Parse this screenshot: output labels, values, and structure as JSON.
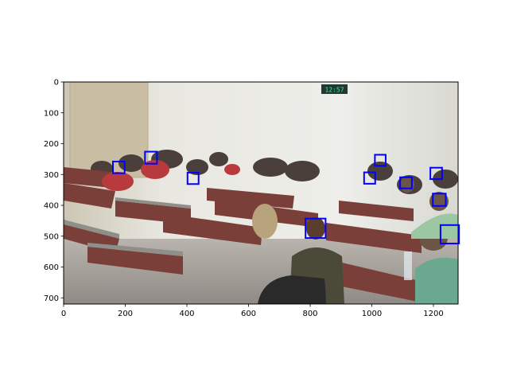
{
  "figure": {
    "image_extent": {
      "x": [
        0,
        1280
      ],
      "y": [
        720,
        0
      ]
    },
    "x_ticks": [
      {
        "value": 0,
        "label": "0"
      },
      {
        "value": 200,
        "label": "200"
      },
      {
        "value": 400,
        "label": "400"
      },
      {
        "value": 600,
        "label": "600"
      },
      {
        "value": 800,
        "label": "800"
      },
      {
        "value": 1000,
        "label": "1000"
      },
      {
        "value": 1200,
        "label": "1200"
      }
    ],
    "y_ticks": [
      {
        "value": 0,
        "label": "0"
      },
      {
        "value": 100,
        "label": "100"
      },
      {
        "value": 200,
        "label": "200"
      },
      {
        "value": 300,
        "label": "300"
      },
      {
        "value": 400,
        "label": "400"
      },
      {
        "value": 500,
        "label": "500"
      },
      {
        "value": 600,
        "label": "600"
      },
      {
        "value": 700,
        "label": "700"
      }
    ],
    "box_color": "#0000ff",
    "clock_text": "12:57",
    "detections": [
      {
        "x": [
          160,
          198
        ],
        "y": [
          258,
          296
        ]
      },
      {
        "x": [
          264,
          303
        ],
        "y": [
          226,
          265
        ]
      },
      {
        "x": [
          402,
          438
        ],
        "y": [
          294,
          331
        ]
      },
      {
        "x": [
          785,
          850
        ],
        "y": [
          443,
          506
        ]
      },
      {
        "x": [
          975,
          1011
        ],
        "y": [
          293,
          330
        ]
      },
      {
        "x": [
          1010,
          1045
        ],
        "y": [
          236,
          272
        ]
      },
      {
        "x": [
          1092,
          1130
        ],
        "y": [
          309,
          345
        ]
      },
      {
        "x": [
          1190,
          1228
        ],
        "y": [
          278,
          315
        ]
      },
      {
        "x": [
          1198,
          1240
        ],
        "y": [
          362,
          402
        ]
      },
      {
        "x": [
          1223,
          1283
        ],
        "y": [
          464,
          524
        ]
      }
    ]
  }
}
